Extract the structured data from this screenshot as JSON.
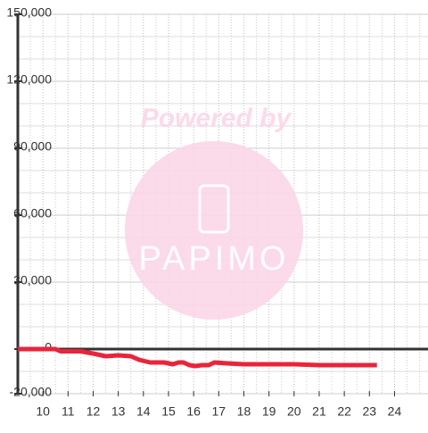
{
  "chart_data": {
    "type": "line",
    "watermark": {
      "top": "Powered by",
      "brand": "PAPIMO"
    },
    "x": [
      9,
      10.5,
      10.7,
      11.5,
      12,
      12.5,
      13,
      13.5,
      13.83,
      14.27,
      14.83,
      15.17,
      15.4,
      15.6,
      15.83,
      16.07,
      16.33,
      16.6,
      16.83,
      17.33,
      18,
      20,
      21,
      23.3
    ],
    "series": [
      {
        "color": "#e8253a",
        "values": [
          0,
          0,
          -1000,
          -1000,
          -2000,
          -3200,
          -2800,
          -3200,
          -4800,
          -6000,
          -6000,
          -6800,
          -6000,
          -6000,
          -7200,
          -7600,
          -7200,
          -7200,
          -6000,
          -6400,
          -6800,
          -6800,
          -7200,
          -7200
        ]
      }
    ],
    "xlim": [
      9,
      25.333
    ],
    "xticks": [
      10,
      11,
      12,
      13,
      14,
      15,
      16,
      17,
      18,
      19,
      20,
      21,
      22,
      23,
      24
    ],
    "x_minor_ticks": [
      9.5,
      10.5,
      11.5,
      12.5,
      13.5,
      14.5,
      15.5,
      16.5,
      17.5,
      18.5,
      19.5,
      20.5,
      21.5,
      22.5,
      23.5,
      24.5,
      25
    ],
    "ylim": [
      -20000,
      150000
    ],
    "yticks": [
      {
        "value": -20000,
        "label": "-20,000"
      },
      0,
      {
        "value": 30000,
        "label": "30,000"
      },
      {
        "value": 60000,
        "label": "60,000"
      },
      {
        "value": 90000,
        "label": "90,000"
      },
      {
        "value": 120000,
        "label": "120,000"
      },
      {
        "value": 150000,
        "label": "150,000"
      }
    ],
    "y_minor_ticks": [
      -10000,
      10000,
      20000,
      40000,
      50000,
      70000,
      80000,
      100000,
      110000,
      130000,
      140000
    ],
    "grid": true
  }
}
